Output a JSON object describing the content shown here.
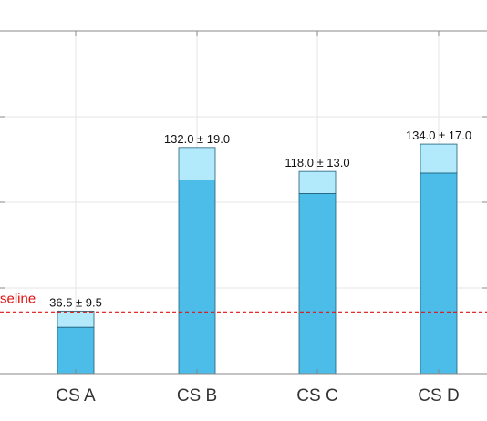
{
  "chart_data": {
    "type": "bar",
    "categories": [
      "CS A",
      "CS B",
      "CS C",
      "CS D"
    ],
    "series": [
      {
        "values": [
          27.0,
          113.0,
          105.0,
          117.0
        ]
      },
      {
        "values": [
          36.5,
          132.0,
          118.0,
          134.0
        ]
      }
    ],
    "data_labels": [
      "36.5 ± 9.5",
      "132.0 ± 19.0",
      "118.0 ± 13.0",
      "134.0 ± 17.0"
    ],
    "reference_line": {
      "label": "seline",
      "value": 36,
      "style": "dashed"
    },
    "ylim": [
      0,
      200
    ],
    "grid": true,
    "colors": {
      "bar_lower": "#4cbde9",
      "bar_upper": "#b3eafb",
      "bar_edge": "#1f5f7a",
      "reference": "#e01010",
      "grid": "#e6e6e6",
      "axis": "#888888"
    }
  }
}
